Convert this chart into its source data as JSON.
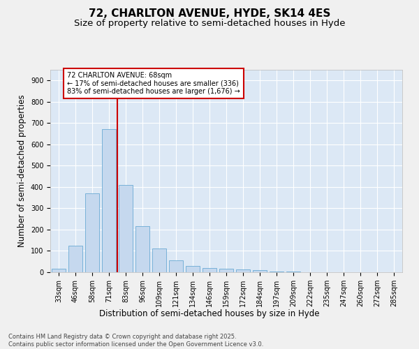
{
  "title": "72, CHARLTON AVENUE, HYDE, SK14 4ES",
  "subtitle": "Size of property relative to semi-detached houses in Hyde",
  "xlabel": "Distribution of semi-detached houses by size in Hyde",
  "ylabel": "Number of semi-detached properties",
  "bar_labels": [
    "33sqm",
    "46sqm",
    "58sqm",
    "71sqm",
    "83sqm",
    "96sqm",
    "109sqm",
    "121sqm",
    "134sqm",
    "146sqm",
    "159sqm",
    "172sqm",
    "184sqm",
    "197sqm",
    "209sqm",
    "222sqm",
    "235sqm",
    "247sqm",
    "260sqm",
    "272sqm",
    "285sqm"
  ],
  "bar_values": [
    15,
    125,
    370,
    670,
    410,
    215,
    110,
    55,
    30,
    20,
    15,
    12,
    10,
    4,
    2,
    1,
    1,
    0,
    0,
    0,
    0
  ],
  "bar_color": "#c5d8ee",
  "bar_edge_color": "#6aaad4",
  "vline_x": 3.5,
  "vline_color": "#cc0000",
  "annotation_text": "72 CHARLTON AVENUE: 68sqm\n← 17% of semi-detached houses are smaller (336)\n83% of semi-detached houses are larger (1,676) →",
  "annotation_box_color": "#ffffff",
  "annotation_box_edge": "#cc0000",
  "ylim": [
    0,
    950
  ],
  "yticks": [
    0,
    100,
    200,
    300,
    400,
    500,
    600,
    700,
    800,
    900
  ],
  "background_color": "#dce8f5",
  "fig_background": "#f0f0f0",
  "footer_text": "Contains HM Land Registry data © Crown copyright and database right 2025.\nContains public sector information licensed under the Open Government Licence v3.0.",
  "title_fontsize": 11,
  "subtitle_fontsize": 9.5,
  "tick_fontsize": 7,
  "label_fontsize": 8.5
}
